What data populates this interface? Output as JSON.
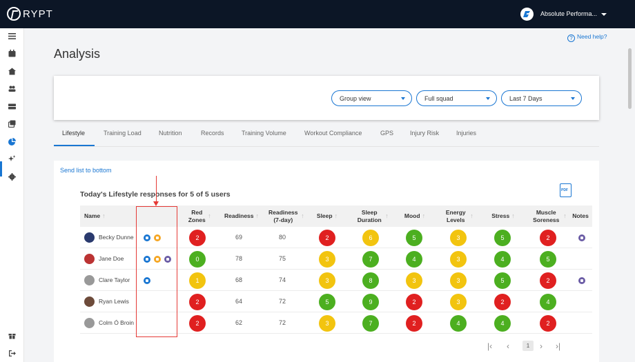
{
  "brand": {
    "logo_text": "RYPT"
  },
  "org": {
    "name": "Absolute Performa..."
  },
  "help": {
    "label": "Need help?"
  },
  "page": {
    "title": "Analysis"
  },
  "filters": {
    "group": "Group view",
    "squad": "Full squad",
    "period": "Last 7 Days"
  },
  "tabs": [
    "Lifestyle",
    "Training Load",
    "Nutrition",
    "Records",
    "Training Volume",
    "Workout Compliance",
    "GPS",
    "Injury Risk",
    "Injuries"
  ],
  "card": {
    "send_label": "Send list to bottom",
    "today_label": "Today's Lifestyle responses for 5 of 5 users"
  },
  "table": {
    "headers": {
      "name": "Name",
      "red_zones": "Red Zones",
      "readiness": "Readiness",
      "readiness7": "Readiness (7-day)",
      "sleep": "Sleep",
      "sleep_duration": "Sleep Duration",
      "mood": "Mood",
      "energy": "Energy Levels",
      "stress": "Stress",
      "soreness": "Muscle Soreness",
      "notes": "Notes"
    },
    "rows": [
      {
        "name": "Becky Dunne",
        "red_zones": "2",
        "readiness": "69",
        "readiness7": "80",
        "sleep": "2",
        "sleep_duration": "6",
        "mood": "5",
        "energy": "3",
        "stress": "5",
        "soreness": "2"
      },
      {
        "name": "Jane Doe",
        "red_zones": "0",
        "readiness": "78",
        "readiness7": "75",
        "sleep": "3",
        "sleep_duration": "7",
        "mood": "4",
        "energy": "3",
        "stress": "4",
        "soreness": "5"
      },
      {
        "name": "Clare Taylor",
        "red_zones": "1",
        "readiness": "68",
        "readiness7": "74",
        "sleep": "3",
        "sleep_duration": "8",
        "mood": "3",
        "energy": "3",
        "stress": "5",
        "soreness": "2"
      },
      {
        "name": "Ryan Lewis",
        "red_zones": "2",
        "readiness": "64",
        "readiness7": "72",
        "sleep": "5",
        "sleep_duration": "9",
        "mood": "2",
        "energy": "3",
        "stress": "2",
        "soreness": "4"
      },
      {
        "name": "Colm Ó Broin",
        "red_zones": "2",
        "readiness": "62",
        "readiness7": "72",
        "sleep": "3",
        "sleep_duration": "7",
        "mood": "2",
        "energy": "4",
        "stress": "4",
        "soreness": "2"
      }
    ]
  },
  "pagination": {
    "current": "1"
  },
  "colors": {
    "accent": "#1976d2",
    "red": "#e02020",
    "green": "#4caf20",
    "yellow": "#f2c40f"
  }
}
